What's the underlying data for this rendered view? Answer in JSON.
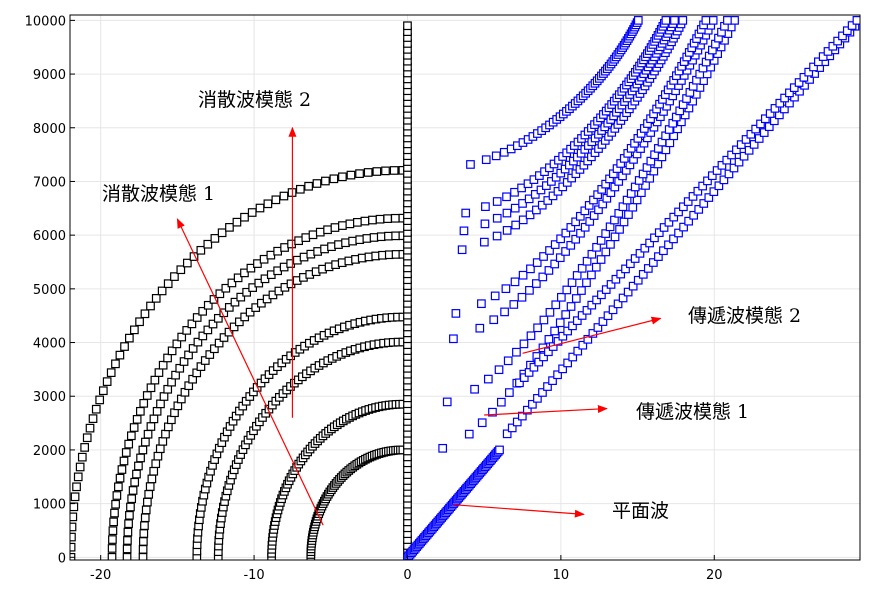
{
  "chart_data": {
    "type": "scatter",
    "title": "",
    "xlabel": "",
    "ylabel": "",
    "xlim": [
      -22,
      29.5
    ],
    "ylim": [
      -50,
      10100
    ],
    "grid": true,
    "x_ticks": [
      -20,
      -10,
      0,
      10,
      20
    ],
    "x_tick_labels": [
      "-20",
      "-10",
      "0",
      "10",
      "20"
    ],
    "y_ticks": [
      0,
      1000,
      2000,
      3000,
      4000,
      5000,
      6000,
      7000,
      8000,
      9000,
      10000
    ],
    "y_tick_labels": [
      "0",
      "1000",
      "2000",
      "3000",
      "4000",
      "5000",
      "6000",
      "7000",
      "8000",
      "9000",
      "10000"
    ],
    "colors": {
      "evanescent": "#000000",
      "propagating": "#0000ff",
      "arrow": "#ff0000",
      "grid": "#e6e6e6"
    },
    "series": [
      {
        "color": "#000000",
        "kind": "imaginary_quarter_circle",
        "cutoffs": [
          2020,
          2880,
          4050,
          4520,
          5700,
          6050,
          6380,
          7280
        ]
      },
      {
        "color": "#000000",
        "kind": "vertical_band_at_zero",
        "x": [
          0,
          0
        ],
        "y": [
          0,
          10000
        ]
      },
      {
        "color": "#0000ff",
        "kind": "dispersion_curves",
        "cutoffs": [
          2020,
          2880,
          4050,
          4520,
          5700,
          6050,
          6380,
          7280
        ]
      },
      {
        "color": "#0000ff",
        "kind": "plane_wave",
        "x": [
          0,
          6
        ],
        "y": [
          0,
          2000
        ]
      },
      {
        "color": "#0000ff",
        "kind": "plane_wave",
        "x": [
          6.5,
          29.5
        ],
        "y": [
          2300,
          10000
        ]
      },
      {
        "color": "#0000ff",
        "kind": "plane_wave",
        "x": [
          7.3,
          29.3
        ],
        "y": [
          3250,
          10000
        ]
      }
    ],
    "annotations": [
      {
        "text": "消散波模態 2",
        "from": [
          -7.5,
          2600
        ],
        "to": [
          -7.5,
          8000
        ]
      },
      {
        "text": "消散波模態 1",
        "from": [
          -5.5,
          600
        ],
        "to": [
          -15,
          6300
        ]
      },
      {
        "text": "傳遞波模態 2",
        "from": [
          7.5,
          3800
        ],
        "to": [
          16.5,
          4450
        ]
      },
      {
        "text": "傳遞波模態 1",
        "from": [
          5,
          2650
        ],
        "to": [
          13,
          2770
        ]
      },
      {
        "text": "平面波",
        "from": [
          3,
          980
        ],
        "to": [
          11.5,
          800
        ]
      }
    ]
  }
}
